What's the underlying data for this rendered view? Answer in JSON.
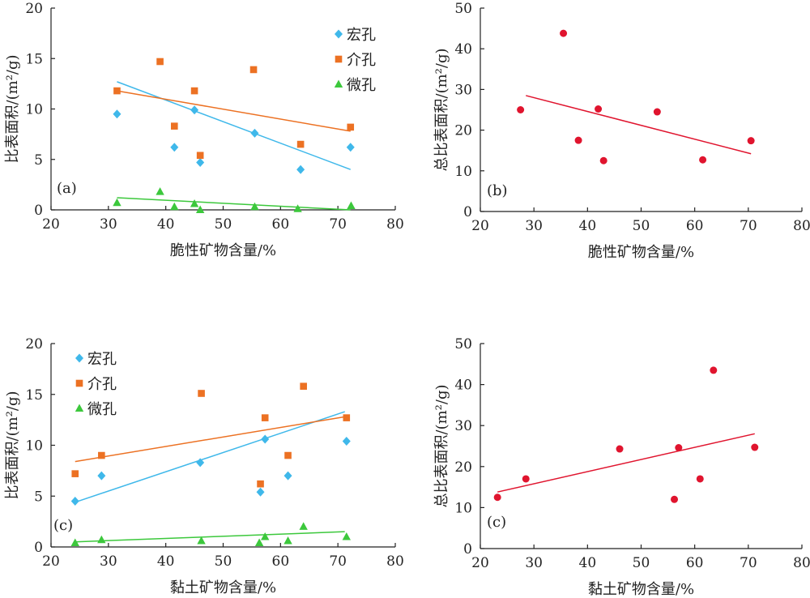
{
  "chart_data": [
    {
      "id": "a",
      "type": "scatter",
      "panel_label": "(a)",
      "xlabel": "脆性矿物含量/%",
      "ylabel": "比表面积/(m²/g)",
      "xlim": [
        20,
        80
      ],
      "ylim": [
        0,
        20
      ],
      "xticks": [
        20,
        30,
        40,
        50,
        60,
        70,
        80
      ],
      "yticks": [
        0,
        5,
        10,
        15,
        20
      ],
      "legend_position": "top-right",
      "series": [
        {
          "name": "宏孔",
          "marker": "diamond",
          "color": "#3fb8ea",
          "x": [
            31.5,
            41.5,
            45,
            46,
            55.5,
            63.5,
            72.2
          ],
          "y": [
            9.5,
            6.2,
            9.9,
            4.7,
            7.6,
            4.0,
            6.2
          ],
          "trend": {
            "x": [
              31.5,
              72.2
            ],
            "y": [
              12.7,
              4.0
            ]
          }
        },
        {
          "name": "介孔",
          "marker": "square",
          "color": "#ec7123",
          "x": [
            31.5,
            39,
            41.5,
            45,
            46,
            55.3,
            63.5,
            72.2
          ],
          "y": [
            11.8,
            14.7,
            8.3,
            11.8,
            5.4,
            13.9,
            6.5,
            8.2
          ],
          "trend": {
            "x": [
              31.5,
              72.2
            ],
            "y": [
              11.8,
              7.8
            ]
          }
        },
        {
          "name": "微孔",
          "marker": "triangle",
          "color": "#3cc83c",
          "x": [
            31.5,
            39,
            41.5,
            45,
            46,
            55.5,
            63,
            72.3
          ],
          "y": [
            0.7,
            1.8,
            0.3,
            0.6,
            0.0,
            0.3,
            0.1,
            0.4
          ],
          "trend": {
            "x": [
              31.5,
              72.2
            ],
            "y": [
              1.2,
              0.0
            ]
          }
        }
      ]
    },
    {
      "id": "b",
      "type": "scatter",
      "panel_label": "(b)",
      "xlabel": "脆性矿物含量/%",
      "ylabel": "总比表面积/(m²/g)",
      "xlim": [
        20,
        80
      ],
      "ylim": [
        0,
        50
      ],
      "xticks": [
        20,
        30,
        40,
        50,
        60,
        70,
        80
      ],
      "yticks": [
        0,
        10,
        20,
        30,
        40,
        50
      ],
      "series": [
        {
          "name": "",
          "marker": "circle",
          "color": "#e0142e",
          "x": [
            27.5,
            35.5,
            38.3,
            42,
            43,
            53,
            61.5,
            70.5
          ],
          "y": [
            25,
            43.8,
            17.5,
            25.2,
            12.5,
            24.5,
            12.7,
            17.4
          ],
          "trend": {
            "x": [
              28.5,
              70.5
            ],
            "y": [
              28.5,
              14.2
            ]
          }
        }
      ]
    },
    {
      "id": "c1",
      "type": "scatter",
      "panel_label": "(c)",
      "xlabel": "黏土矿物含量/%",
      "ylabel": "比表面积/(m²/g)",
      "xlim": [
        20,
        80
      ],
      "ylim": [
        0,
        20
      ],
      "xticks": [
        20,
        30,
        40,
        50,
        60,
        70,
        80
      ],
      "yticks": [
        0,
        5,
        10,
        15,
        20
      ],
      "legend_position": "top-left",
      "series": [
        {
          "name": "宏孔",
          "marker": "diamond",
          "color": "#3fb8ea",
          "x": [
            24.2,
            28.8,
            46,
            56.5,
            57.3,
            61.3,
            71.5
          ],
          "y": [
            4.5,
            7.0,
            8.3,
            5.4,
            10.6,
            7.0,
            10.4
          ],
          "trend": {
            "x": [
              24.2,
              71.2
            ],
            "y": [
              4.4,
              13.3
            ]
          }
        },
        {
          "name": "介孔",
          "marker": "square",
          "color": "#ec7123",
          "x": [
            24.2,
            28.8,
            46.2,
            56.5,
            57.3,
            61.3,
            64,
            71.5
          ],
          "y": [
            7.2,
            9.0,
            15.1,
            6.2,
            12.7,
            9.0,
            15.8,
            12.7
          ],
          "trend": {
            "x": [
              24.2,
              71.2
            ],
            "y": [
              8.4,
              12.8
            ]
          }
        },
        {
          "name": "微孔",
          "marker": "triangle",
          "color": "#3cc83c",
          "x": [
            24.2,
            28.8,
            46.2,
            56.3,
            57.3,
            61.3,
            64,
            71.5
          ],
          "y": [
            0.4,
            0.7,
            0.6,
            0.4,
            1.0,
            0.6,
            2.0,
            1.0
          ],
          "trend": {
            "x": [
              24.2,
              71.2
            ],
            "y": [
              0.5,
              1.5
            ]
          }
        }
      ]
    },
    {
      "id": "c2",
      "type": "scatter",
      "panel_label": "(c)",
      "xlabel": "黏土矿物含量/%",
      "ylabel": "总比表面积/(m²/g)",
      "xlim": [
        20,
        80
      ],
      "ylim": [
        0,
        50
      ],
      "xticks": [
        20,
        30,
        40,
        50,
        60,
        70,
        80
      ],
      "yticks": [
        0,
        10,
        20,
        30,
        40,
        50
      ],
      "series": [
        {
          "name": "",
          "marker": "circle",
          "color": "#e0142e",
          "x": [
            23.2,
            28.5,
            46,
            57,
            56.2,
            61,
            63.5,
            71.2
          ],
          "y": [
            12.5,
            17.0,
            24.3,
            24.6,
            12.0,
            17.0,
            43.5,
            24.7
          ],
          "trend": {
            "x": [
              23.2,
              71.2
            ],
            "y": [
              13.8,
              28.0
            ]
          }
        }
      ]
    }
  ]
}
